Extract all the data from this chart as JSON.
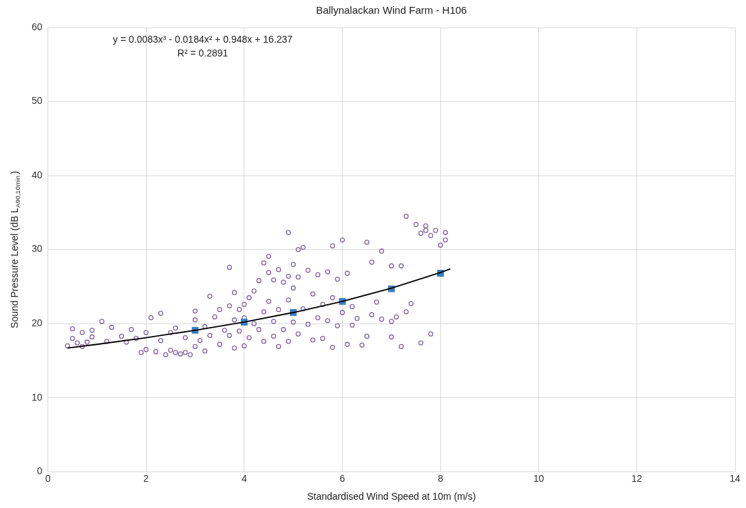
{
  "chart_data": {
    "type": "scatter",
    "title": "Ballynalackan Wind Farm - H106",
    "xlabel": "Standardised Wind Speed at 10m (m/s)",
    "ylabel": "Sound Pressure Level (dB L$_{A90,10min}$)",
    "xlim": [
      0,
      14
    ],
    "xticks": [
      0,
      2,
      4,
      6,
      8,
      10,
      12,
      14
    ],
    "ylim": [
      0,
      60
    ],
    "yticks": [
      0,
      10,
      20,
      30,
      40,
      50,
      60
    ],
    "grid": true,
    "annotations": [
      "y = 0.0083x³ - 0.0184x² + 0.948x + 16.237",
      "R² = 0.2891"
    ],
    "series": [
      {
        "type": "scatter",
        "marker": "circle",
        "color": "#8064a2",
        "x": [
          0.4,
          0.5,
          0.5,
          0.6,
          0.7,
          0.7,
          0.8,
          0.9,
          0.9,
          1.1,
          1.2,
          1.3,
          1.5,
          1.6,
          1.7,
          1.8,
          1.9,
          2.0,
          2.0,
          2.1,
          2.2,
          2.3,
          2.3,
          2.4,
          2.5,
          2.5,
          2.6,
          2.6,
          2.7,
          2.8,
          2.8,
          2.9,
          3.0,
          3.0,
          3.0,
          3.1,
          3.2,
          3.2,
          3.3,
          3.3,
          3.4,
          3.5,
          3.5,
          3.6,
          3.7,
          3.7,
          3.7,
          3.8,
          3.8,
          3.8,
          3.9,
          3.9,
          4.0,
          4.0,
          4.0,
          4.1,
          4.1,
          4.2,
          4.2,
          4.3,
          4.3,
          4.4,
          4.4,
          4.4,
          4.5,
          4.5,
          4.5,
          4.6,
          4.6,
          4.6,
          4.7,
          4.7,
          4.7,
          4.8,
          4.8,
          4.9,
          4.9,
          4.9,
          4.9,
          5.0,
          5.0,
          5.0,
          5.1,
          5.1,
          5.1,
          5.2,
          5.2,
          5.3,
          5.3,
          5.4,
          5.4,
          5.5,
          5.5,
          5.6,
          5.6,
          5.7,
          5.7,
          5.8,
          5.8,
          5.8,
          5.9,
          5.9,
          6.0,
          6.0,
          6.1,
          6.1,
          6.2,
          6.2,
          6.3,
          6.4,
          6.5,
          6.5,
          6.6,
          6.6,
          6.7,
          6.8,
          6.8,
          7.0,
          7.0,
          7.0,
          7.1,
          7.2,
          7.2,
          7.3,
          7.3,
          7.4,
          7.5,
          7.6,
          7.6,
          7.7,
          7.7,
          7.8,
          7.8,
          7.9,
          8.0,
          8.1,
          8.1
        ],
        "values": [
          17,
          18,
          19.3,
          17.4,
          16.9,
          18.8,
          17.5,
          18.2,
          19.1,
          20.3,
          17.6,
          19.5,
          18.3,
          17.5,
          19.2,
          18,
          16.1,
          18.8,
          16.5,
          20.8,
          16.2,
          17.7,
          21.4,
          15.8,
          16.4,
          18.8,
          16.1,
          19.4,
          15.9,
          16.1,
          18.1,
          15.8,
          16.9,
          20.5,
          21.7,
          17.7,
          19.6,
          16.3,
          23.7,
          18.4,
          20.9,
          17.2,
          21.9,
          19.1,
          27.6,
          22.4,
          18.4,
          16.7,
          24.2,
          20.5,
          21.9,
          19,
          17,
          22.6,
          20.8,
          23.5,
          18.1,
          24.4,
          20,
          25.8,
          19.2,
          28.2,
          21.6,
          17.6,
          29.1,
          26.9,
          23,
          25.9,
          20.3,
          18.3,
          27.3,
          21.9,
          16.9,
          25.6,
          19.2,
          32.3,
          26.4,
          23.2,
          17.6,
          28,
          24.8,
          20.2,
          30,
          26.3,
          18.6,
          30.3,
          22,
          27.2,
          19.9,
          24,
          17.8,
          26.6,
          20.8,
          22.6,
          18,
          27,
          20.4,
          30.5,
          23.5,
          16.8,
          26,
          19.7,
          31.3,
          21.5,
          26.8,
          17.2,
          22.3,
          19.8,
          20.7,
          17.1,
          31,
          18.3,
          28.3,
          21.2,
          22.9,
          29.8,
          20.6,
          27.8,
          18.2,
          20.3,
          20.9,
          27.8,
          16.9,
          21.6,
          34.5,
          22.7,
          33.4,
          32.2,
          17.4,
          32.6,
          33.2,
          31.9,
          18.6,
          32.6,
          30.6,
          31.3,
          32.3
        ]
      },
      {
        "type": "scatter",
        "marker": "square",
        "color": "#3b7dc4",
        "x": [
          3,
          4,
          5,
          6,
          7,
          8
        ],
        "values": [
          19.1,
          20.2,
          21.5,
          23.0,
          24.7,
          26.8
        ]
      },
      {
        "type": "line",
        "marker": "none",
        "color": "#000000",
        "x": [
          0.4,
          1,
          2,
          3,
          4,
          5,
          6,
          7,
          8,
          8.2
        ],
        "values": [
          16.7,
          17.2,
          18.1,
          19.1,
          20.2,
          21.5,
          23.0,
          24.8,
          26.9,
          27.4
        ]
      }
    ]
  }
}
